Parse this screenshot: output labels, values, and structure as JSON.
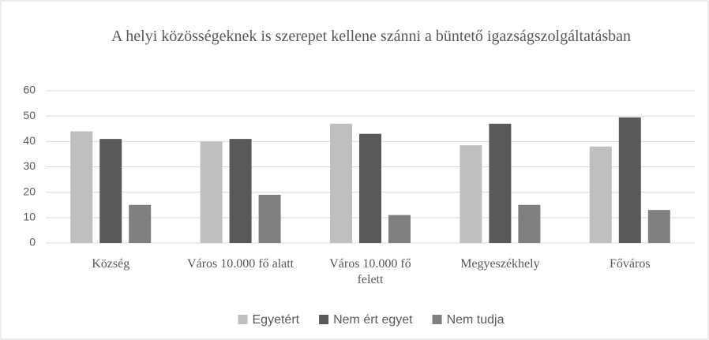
{
  "chart_data": {
    "type": "bar",
    "title": "A helyi közösségeknek is szerepet kellene szánni a büntető igazságszolgáltatásban",
    "categories": [
      "Község",
      "Város 10.000 fő alatt",
      "Város 10.000 fő felett",
      "Megyeszékhely",
      "Főváros"
    ],
    "series": [
      {
        "name": "Egyetért",
        "color": "#bfbfbf",
        "values": [
          44,
          40,
          47,
          38.5,
          38
        ]
      },
      {
        "name": "Nem ért egyet",
        "color": "#595959",
        "values": [
          41,
          41,
          43,
          47,
          49.5
        ]
      },
      {
        "name": "Nem tudja",
        "color": "#7f7f7f",
        "values": [
          15,
          19,
          11,
          15,
          13
        ]
      }
    ],
    "ylim": [
      0,
      60
    ],
    "yticks": [
      0,
      10,
      20,
      30,
      40,
      50,
      60
    ],
    "grid": true,
    "legend": "bottom"
  }
}
